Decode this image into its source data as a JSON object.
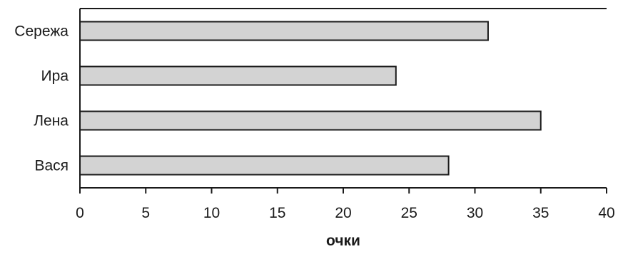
{
  "chart_data": {
    "type": "bar",
    "orientation": "horizontal",
    "categories": [
      "Сережа",
      "Ира",
      "Лена",
      "Вася"
    ],
    "values": [
      31,
      24,
      35,
      28
    ],
    "title": "",
    "xlabel": "очки",
    "ylabel": "",
    "xlim": [
      0,
      40
    ],
    "xticks": [
      0,
      5,
      10,
      15,
      20,
      25,
      30,
      35,
      40
    ],
    "grid": false,
    "legend": "none",
    "bar_color": "#d3d3d3",
    "edge_color": "#1a1a1a"
  }
}
